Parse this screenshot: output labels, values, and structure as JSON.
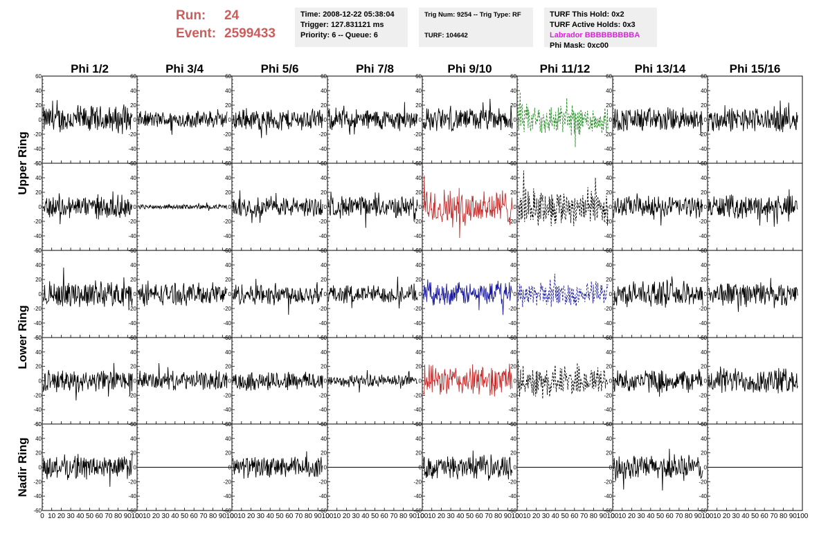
{
  "header": {
    "run_label": "Run:",
    "run_value": "24",
    "event_label": "Event:",
    "event_value": "2599433"
  },
  "info_time": {
    "line1": "Time: 2008-12-22 05:38:04",
    "line2": "Trigger: 127.831121 ms",
    "line3": "Priority: 6 -- Queue: 6"
  },
  "info_trig": {
    "line1": "Trig Num: 9254 -- Trig Type: RF",
    "line2": "TURF: 104642"
  },
  "info_turf": {
    "line1": "TURF This Hold: 0x2",
    "line2": "TURF Active Holds: 0x3",
    "line3": "Labrador BBBBBBBBBA",
    "line4": "Phi Mask: 0xc00"
  },
  "chart_data": {
    "type": "line",
    "columns": [
      "Phi 1/2",
      "Phi 3/4",
      "Phi 5/6",
      "Phi 7/8",
      "Phi 9/10",
      "Phi 11/12",
      "Phi 13/14",
      "Phi 15/16"
    ],
    "rows": [
      "Upper Ring",
      "Lower Ring",
      "Nadir Ring"
    ],
    "xlim": [
      0,
      100
    ],
    "ylim": [
      -60,
      60
    ],
    "x_tick_labels": [
      "0",
      "10",
      "20",
      "30",
      "40",
      "50",
      "60",
      "70",
      "80",
      "90",
      "100"
    ],
    "y_tick_labels": [
      "60",
      "40",
      "20",
      "0",
      "-20",
      "-40",
      "-60"
    ],
    "colors": {
      "default": "#000000",
      "green": "#1f8a1f",
      "red": "#c62828",
      "blue": "#1a1a9e"
    },
    "panels": [
      [
        {
          "amp": 18,
          "style": "solid",
          "color": "default"
        },
        {
          "amp": 11,
          "style": "solid",
          "color": "default"
        },
        {
          "amp": 14,
          "style": "solid",
          "color": "default"
        },
        {
          "amp": 14,
          "style": "solid",
          "color": "default"
        },
        {
          "amp": 15,
          "style": "solid",
          "color": "default"
        },
        {
          "amp": 20,
          "style": "dashed",
          "color": "green"
        },
        {
          "amp": 16,
          "style": "solid",
          "color": "default"
        },
        {
          "amp": 16,
          "style": "solid",
          "color": "default"
        }
      ],
      [
        {
          "amp": 15,
          "style": "solid",
          "color": "default"
        },
        {
          "amp": 3,
          "style": "solid",
          "color": "default"
        },
        {
          "amp": 13,
          "style": "solid",
          "color": "default"
        },
        {
          "amp": 14,
          "style": "solid",
          "color": "default"
        },
        {
          "amp": 24,
          "style": "solid",
          "color": "red"
        },
        {
          "amp": 24,
          "style": "dashed",
          "color": "default"
        },
        {
          "amp": 14,
          "style": "solid",
          "color": "default"
        },
        {
          "amp": 15,
          "style": "solid",
          "color": "default"
        }
      ],
      [
        {
          "amp": 17,
          "style": "solid",
          "color": "default"
        },
        {
          "amp": 14,
          "style": "solid",
          "color": "default"
        },
        {
          "amp": 14,
          "style": "solid",
          "color": "default"
        },
        {
          "amp": 12,
          "style": "solid",
          "color": "default"
        },
        {
          "amp": 15,
          "style": "solid",
          "color": "blue"
        },
        {
          "amp": 16,
          "style": "dashed",
          "color": "blue"
        },
        {
          "amp": 16,
          "style": "solid",
          "color": "default"
        },
        {
          "amp": 16,
          "style": "solid",
          "color": "default"
        }
      ],
      [
        {
          "amp": 14,
          "style": "solid",
          "color": "default"
        },
        {
          "amp": 12,
          "style": "solid",
          "color": "default"
        },
        {
          "amp": 13,
          "style": "solid",
          "color": "default"
        },
        {
          "amp": 8,
          "style": "solid",
          "color": "default"
        },
        {
          "amp": 20,
          "style": "solid",
          "color": "red"
        },
        {
          "amp": 20,
          "style": "dashed",
          "color": "default"
        },
        {
          "amp": 15,
          "style": "solid",
          "color": "default"
        },
        {
          "amp": 17,
          "style": "solid",
          "color": "default"
        }
      ],
      [
        {
          "amp": 16,
          "style": "solid",
          "color": "default"
        },
        {
          "amp": 0,
          "style": "solid",
          "color": "default"
        },
        {
          "amp": 14,
          "style": "solid",
          "color": "default"
        },
        {
          "amp": 0,
          "style": "solid",
          "color": "default"
        },
        {
          "amp": 15,
          "style": "solid",
          "color": "default"
        },
        {
          "amp": 0,
          "style": "solid",
          "color": "default"
        },
        {
          "amp": 16,
          "style": "solid",
          "color": "default"
        },
        {
          "amp": 0,
          "style": "solid",
          "color": "default"
        }
      ]
    ]
  }
}
